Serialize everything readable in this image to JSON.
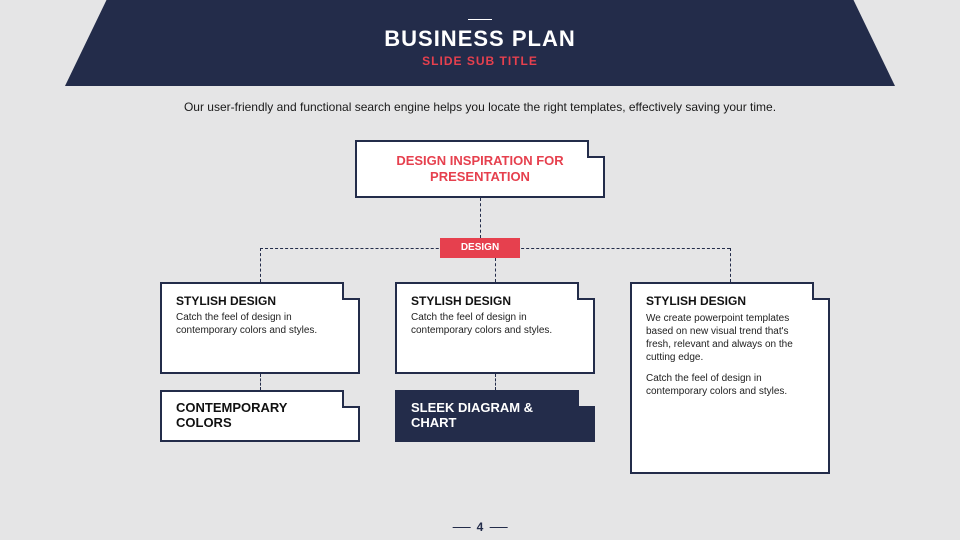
{
  "colors": {
    "navy": "#232c4a",
    "red": "#e6404e",
    "page_bg": "#e5e5e6",
    "white": "#ffffff",
    "text": "#1a1a1a"
  },
  "typography": {
    "banner_title_size": 22,
    "banner_sub_size": 12,
    "intro_size": 12,
    "root_title_size": 13,
    "badge_size": 10,
    "card_heading_size": 12,
    "card_body_size": 10,
    "sub_heading_size": 13,
    "pagenum_size": 12
  },
  "banner": {
    "title": "BUSINESS PLAN",
    "subtitle": "SLIDE SUB TITLE"
  },
  "intro": "Our user-friendly and functional search engine helps you locate the right templates, effectively saving your time.",
  "diagram": {
    "type": "tree",
    "root": {
      "title": "DESIGN INSPIRATION FOR PRESENTATION"
    },
    "badge": "DESIGN",
    "columns": [
      {
        "card": {
          "heading": "STYLISH DESIGN",
          "body": "Catch the feel of design in contemporary colors and styles."
        },
        "sub": {
          "heading": "CONTEMPORARY COLORS",
          "dark": false
        }
      },
      {
        "card": {
          "heading": "STYLISH DESIGN",
          "body": "Catch the feel of design in contemporary colors and styles."
        },
        "sub": {
          "heading": "SLEEK DIAGRAM & CHART",
          "dark": true
        }
      },
      {
        "tall": {
          "heading": "STYLISH DESIGN",
          "body1": "We create powerpoint templates based on new visual trend that's fresh, relevant and always on the cutting edge.",
          "body2": "Catch the feel of design in contemporary colors and styles."
        }
      }
    ]
  },
  "page_number": "4"
}
